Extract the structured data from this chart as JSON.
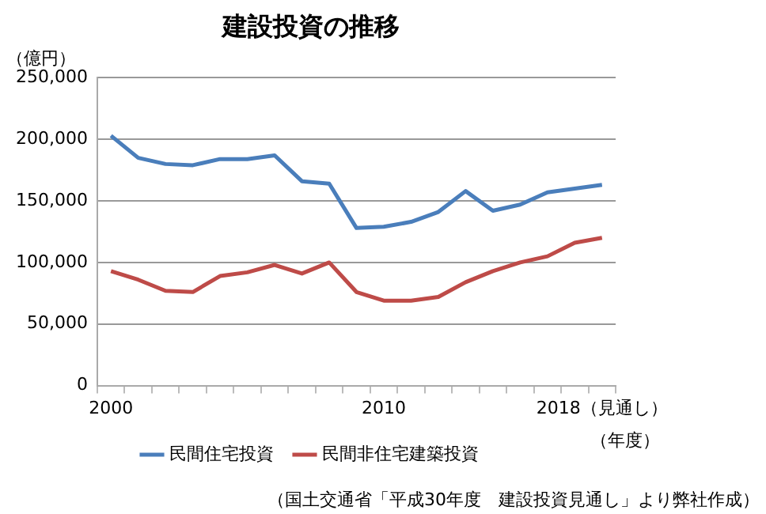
{
  "chart_data": {
    "type": "line",
    "title": "建設投資の推移",
    "ylabel": "（億円）",
    "xlabel": "（年度）",
    "categories": [
      "2000",
      null,
      null,
      null,
      null,
      null,
      null,
      null,
      null,
      null,
      "2010",
      null,
      null,
      null,
      null,
      null,
      null,
      null,
      "2018（見通し）"
    ],
    "series": [
      {
        "name": "民間住宅投資",
        "color": "#4a7ebb",
        "values": [
          203000,
          185000,
          180000,
          179000,
          184000,
          184000,
          187000,
          166000,
          164000,
          128000,
          129000,
          133000,
          141000,
          158000,
          142000,
          147000,
          157000,
          160000,
          163000
        ]
      },
      {
        "name": "民間非住宅建築投資",
        "color": "#be4b48",
        "values": [
          93000,
          86000,
          77000,
          76000,
          89000,
          92000,
          98000,
          91000,
          100000,
          76000,
          69000,
          69000,
          72000,
          84000,
          93000,
          100000,
          105000,
          116000,
          120000
        ]
      }
    ],
    "ylim": [
      0,
      250000
    ],
    "yticks": [
      {
        "value": 0,
        "label": "0"
      },
      {
        "value": 50000,
        "label": "50,000"
      },
      {
        "value": 100000,
        "label": "100,000"
      },
      {
        "value": 150000,
        "label": "150,000"
      },
      {
        "value": 200000,
        "label": "200,000"
      },
      {
        "value": 250000,
        "label": "250,000"
      }
    ],
    "grid": "y",
    "legend": "bottom",
    "marker": "none",
    "line_style": "solid",
    "annotations": [
      "（国土交通省「平成30年度　建設投資見通し」より弊社作成）"
    ]
  }
}
